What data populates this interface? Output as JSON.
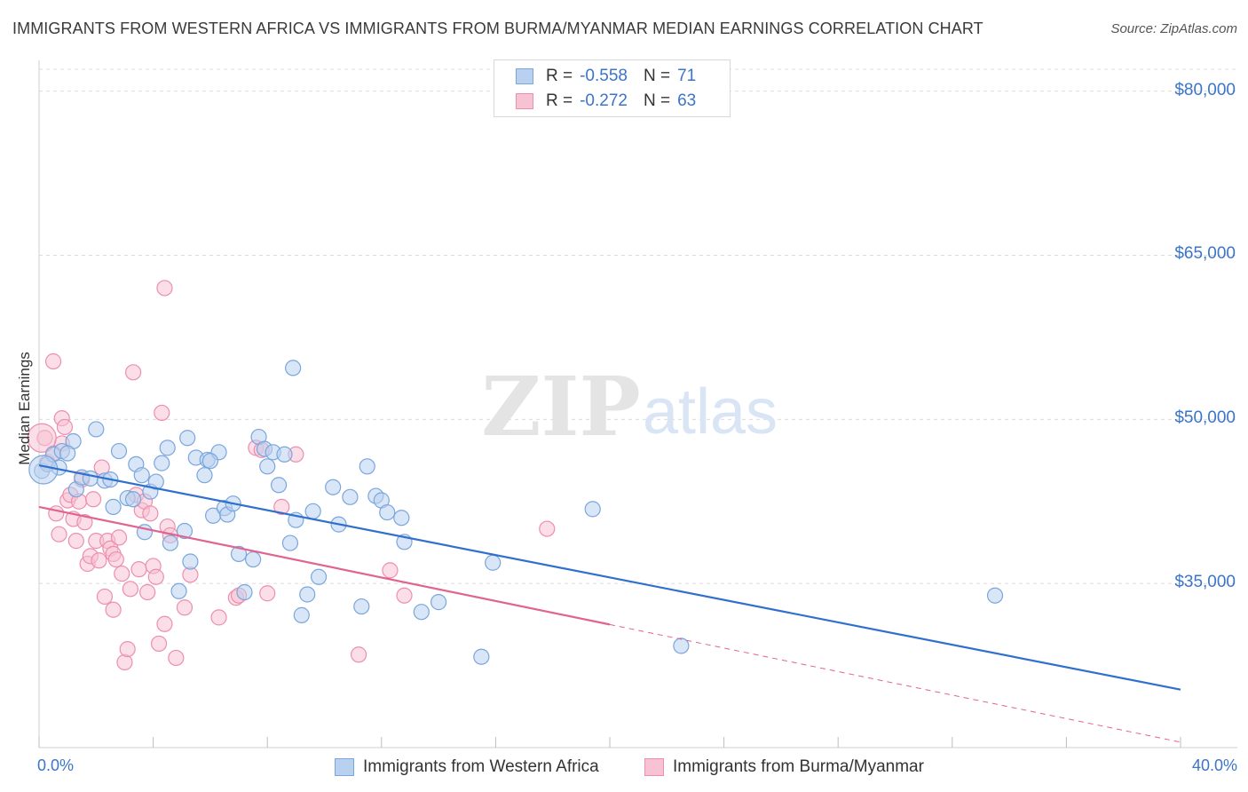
{
  "title": "IMMIGRANTS FROM WESTERN AFRICA VS IMMIGRANTS FROM BURMA/MYANMAR MEDIAN EARNINGS CORRELATION CHART",
  "source": "Source: ZipAtlas.com",
  "watermark": {
    "zip": "ZIP",
    "atlas": "atlas"
  },
  "legend": {
    "r_label": "R =",
    "n_label": "N =",
    "rows": [
      {
        "r": "-0.558",
        "n": "71"
      },
      {
        "r": "-0.272",
        "n": "63"
      }
    ]
  },
  "colors": {
    "blue_fill": "#b9d1f0",
    "blue_stroke": "#7aa6dc",
    "blue_line": "#2f6fce",
    "pink_fill": "#f7c3d3",
    "pink_stroke": "#ec8fae",
    "pink_line": "#e0648f",
    "axis_text": "#3b74c9",
    "grid": "#dcdcdc"
  },
  "chart_data": {
    "type": "scatter",
    "ylabel": "Median Earnings",
    "xlim": [
      0,
      40
    ],
    "ylim": [
      20000,
      82000
    ],
    "x_tick_labels": [
      "0.0%",
      "40.0%"
    ],
    "y_ticks": [
      {
        "value": 35000,
        "label": "$35,000"
      },
      {
        "value": 50000,
        "label": "$50,000"
      },
      {
        "value": 65000,
        "label": "$65,000"
      },
      {
        "value": 80000,
        "label": "$80,000"
      }
    ],
    "grid": true,
    "series": [
      {
        "name": "Immigrants from Western Africa",
        "color": "blue",
        "trend": {
          "x0": 0,
          "y0": 45800,
          "x1": 40,
          "y1": 25300,
          "dashed_from": null
        },
        "points": [
          [
            0.1,
            45300
          ],
          [
            0.3,
            45900
          ],
          [
            0.5,
            46800
          ],
          [
            0.7,
            45600
          ],
          [
            0.8,
            47100
          ],
          [
            1.2,
            48000
          ],
          [
            1.3,
            43600
          ],
          [
            1.5,
            44700
          ],
          [
            1.8,
            44600
          ],
          [
            2.0,
            49100
          ],
          [
            2.3,
            44400
          ],
          [
            2.6,
            42000
          ],
          [
            2.8,
            47100
          ],
          [
            3.1,
            42800
          ],
          [
            3.4,
            45900
          ],
          [
            3.6,
            44900
          ],
          [
            3.7,
            39700
          ],
          [
            3.9,
            43400
          ],
          [
            4.1,
            44300
          ],
          [
            4.3,
            46000
          ],
          [
            4.5,
            47400
          ],
          [
            4.6,
            38700
          ],
          [
            4.9,
            34300
          ],
          [
            5.1,
            39800
          ],
          [
            5.2,
            48300
          ],
          [
            5.3,
            37000
          ],
          [
            5.5,
            46500
          ],
          [
            5.8,
            44900
          ],
          [
            5.9,
            46300
          ],
          [
            6.1,
            41200
          ],
          [
            6.3,
            47000
          ],
          [
            6.5,
            41900
          ],
          [
            6.6,
            41300
          ],
          [
            6.8,
            42300
          ],
          [
            7.0,
            37700
          ],
          [
            7.2,
            34200
          ],
          [
            7.5,
            37200
          ],
          [
            7.7,
            48400
          ],
          [
            7.9,
            47300
          ],
          [
            8.0,
            45700
          ],
          [
            8.2,
            47000
          ],
          [
            8.4,
            44000
          ],
          [
            8.6,
            46800
          ],
          [
            8.8,
            38700
          ],
          [
            9.0,
            40800
          ],
          [
            9.2,
            32100
          ],
          [
            9.4,
            34000
          ],
          [
            9.6,
            41600
          ],
          [
            8.9,
            54700
          ],
          [
            9.8,
            35600
          ],
          [
            10.3,
            43800
          ],
          [
            10.5,
            40400
          ],
          [
            10.9,
            42900
          ],
          [
            11.3,
            32900
          ],
          [
            11.5,
            45700
          ],
          [
            11.8,
            43000
          ],
          [
            12.0,
            42600
          ],
          [
            12.2,
            41500
          ],
          [
            12.7,
            41000
          ],
          [
            12.8,
            38800
          ],
          [
            13.4,
            32400
          ],
          [
            14.0,
            33300
          ],
          [
            15.5,
            28300
          ],
          [
            15.9,
            36900
          ],
          [
            19.4,
            41800
          ],
          [
            22.5,
            29300
          ],
          [
            33.5,
            33900
          ],
          [
            2.5,
            44500
          ],
          [
            6.0,
            46200
          ],
          [
            3.3,
            42700
          ],
          [
            1.0,
            46900
          ]
        ],
        "large_points": [
          [
            0.15,
            45400
          ]
        ]
      },
      {
        "name": "Immigrants from Burma/Myanmar",
        "color": "pink",
        "trend": {
          "x0": 0,
          "y0": 42000,
          "x1": 40,
          "y1": 20500,
          "solid_until": 20
        },
        "points": [
          [
            0.3,
            46100
          ],
          [
            0.5,
            46900
          ],
          [
            0.5,
            55300
          ],
          [
            0.6,
            41400
          ],
          [
            0.7,
            39500
          ],
          [
            0.8,
            47800
          ],
          [
            0.8,
            50100
          ],
          [
            0.9,
            49300
          ],
          [
            1.0,
            42600
          ],
          [
            1.1,
            43100
          ],
          [
            1.2,
            40900
          ],
          [
            1.3,
            38900
          ],
          [
            1.4,
            42500
          ],
          [
            1.5,
            44500
          ],
          [
            1.6,
            40600
          ],
          [
            1.7,
            36800
          ],
          [
            1.8,
            37500
          ],
          [
            1.9,
            42700
          ],
          [
            2.0,
            38900
          ],
          [
            2.1,
            37100
          ],
          [
            2.2,
            45600
          ],
          [
            2.3,
            33800
          ],
          [
            2.4,
            38900
          ],
          [
            2.5,
            38200
          ],
          [
            2.6,
            37700
          ],
          [
            2.6,
            32600
          ],
          [
            2.7,
            37200
          ],
          [
            2.8,
            39200
          ],
          [
            2.9,
            35900
          ],
          [
            3.0,
            27800
          ],
          [
            3.1,
            29000
          ],
          [
            3.2,
            34500
          ],
          [
            3.3,
            54300
          ],
          [
            3.4,
            43100
          ],
          [
            3.5,
            36300
          ],
          [
            3.6,
            41700
          ],
          [
            3.7,
            42500
          ],
          [
            3.8,
            34200
          ],
          [
            3.9,
            41400
          ],
          [
            4.0,
            36600
          ],
          [
            4.1,
            35600
          ],
          [
            4.2,
            29500
          ],
          [
            4.3,
            50600
          ],
          [
            4.4,
            31300
          ],
          [
            4.4,
            62000
          ],
          [
            4.5,
            40200
          ],
          [
            4.6,
            39400
          ],
          [
            4.8,
            28200
          ],
          [
            5.1,
            32800
          ],
          [
            5.3,
            35800
          ],
          [
            6.3,
            31900
          ],
          [
            6.9,
            33700
          ],
          [
            7.0,
            33900
          ],
          [
            7.6,
            47400
          ],
          [
            7.8,
            47200
          ],
          [
            8.0,
            34100
          ],
          [
            8.5,
            42000
          ],
          [
            9.0,
            46800
          ],
          [
            11.2,
            28500
          ],
          [
            12.3,
            36200
          ],
          [
            12.8,
            33900
          ],
          [
            17.8,
            40000
          ],
          [
            0.2,
            48300
          ]
        ],
        "large_points": [
          [
            0.1,
            48300
          ]
        ]
      }
    ]
  }
}
